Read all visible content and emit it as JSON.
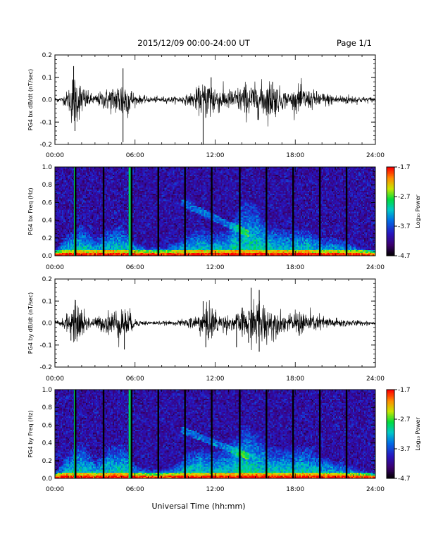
{
  "header": {
    "date_range": "2015/12/09  00:00-24:00 UT",
    "page": "Page 1/1"
  },
  "x_axis": {
    "label": "Universal Time (hh:mm)",
    "range_hours": [
      0,
      24
    ],
    "tick_labels": [
      "00:00",
      "06:00",
      "12:00",
      "18:00",
      "24:00"
    ]
  },
  "colorbar": {
    "label": "Log₁₀ Power",
    "tick_labels": [
      "-1.7",
      "-2.7",
      "-3.7",
      "-4.7"
    ],
    "range": [
      -4.7,
      -1.7
    ]
  },
  "chart_data": [
    {
      "type": "line",
      "panel": "bx-waveform",
      "ylabel": "PG4 bx dB/dt (nT/sec)",
      "ylim": [
        -0.2,
        0.2
      ],
      "ytick_labels": [
        "0.2",
        "0.1",
        "0.0",
        "-0.1",
        "-0.2"
      ],
      "xlim": [
        0,
        24
      ],
      "baseline": 0.0,
      "envelope": {
        "x": [
          0,
          0.5,
          1,
          1.3,
          1.8,
          2.5,
          3,
          3.7,
          4.5,
          5.1,
          5.6,
          6,
          7,
          8,
          9,
          10,
          11,
          11.6,
          12.3,
          13,
          13.7,
          14.3,
          15,
          15.5,
          16.2,
          17,
          17.7,
          18.3,
          19,
          20,
          21,
          22,
          23,
          24
        ],
        "amplitude": [
          0.01,
          0.01,
          0.04,
          0.11,
          0.08,
          0.03,
          0.02,
          0.04,
          0.06,
          0.09,
          0.06,
          0.02,
          0.012,
          0.012,
          0.012,
          0.02,
          0.06,
          0.09,
          0.05,
          0.04,
          0.05,
          0.07,
          0.06,
          0.07,
          0.08,
          0.04,
          0.03,
          0.06,
          0.04,
          0.03,
          0.02,
          0.02,
          0.012,
          0.01
        ]
      },
      "spikes": [
        {
          "x": 1.4,
          "y": 0.15
        },
        {
          "x": 1.5,
          "y": -0.14
        },
        {
          "x": 5.1,
          "y": 0.14
        },
        {
          "x": 5.1,
          "y": -0.19
        },
        {
          "x": 11.1,
          "y": -0.22
        },
        {
          "x": 11.7,
          "y": 0.1
        },
        {
          "x": 15.2,
          "y": -0.09
        },
        {
          "x": 16.3,
          "y": 0.08
        }
      ]
    },
    {
      "type": "heatmap",
      "panel": "bx-spectrogram",
      "ylabel": "PG4 bx Freq (Hz)",
      "ylim": [
        0.0,
        1.0
      ],
      "ytick_labels": [
        "1.0",
        "0.8",
        "0.6",
        "0.4",
        "0.2",
        "0.0"
      ],
      "xlim": [
        0,
        24
      ],
      "zlim": [
        -4.7,
        -1.7
      ],
      "data_gaps_hours": [
        1.4,
        3.5,
        5.6,
        7.6,
        9.6,
        11.6,
        13.7,
        15.7,
        17.7,
        19.7,
        21.7
      ],
      "bright_lines_hours": [
        1.5,
        5.6
      ],
      "activity_envelope": {
        "x": [
          0,
          1,
          2,
          3,
          4,
          5,
          6,
          7,
          8,
          9,
          10,
          11,
          12,
          13,
          14,
          15,
          16,
          17,
          18,
          19,
          20,
          21,
          22,
          23,
          24
        ],
        "max_freq_hz": [
          0.05,
          0.25,
          0.35,
          0.2,
          0.3,
          0.35,
          0.15,
          0.1,
          0.1,
          0.15,
          0.25,
          0.3,
          0.25,
          0.3,
          0.6,
          0.6,
          0.35,
          0.3,
          0.3,
          0.3,
          0.2,
          0.2,
          0.15,
          0.1,
          0.05
        ]
      },
      "diagonal_streak": {
        "x": [
          9.5,
          14.5
        ],
        "freq_hz": [
          0.6,
          0.25
        ]
      }
    },
    {
      "type": "line",
      "panel": "by-waveform",
      "ylabel": "PG4 by dB/dt (nT/sec)",
      "ylim": [
        -0.2,
        0.2
      ],
      "ytick_labels": [
        "0.2",
        "0.1",
        "0.0",
        "-0.1",
        "-0.2"
      ],
      "xlim": [
        0,
        24
      ],
      "baseline": 0.0,
      "envelope": {
        "x": [
          0,
          0.5,
          1,
          1.5,
          2,
          2.5,
          3,
          3.7,
          4.5,
          5.1,
          5.6,
          6,
          7,
          8,
          9,
          10,
          11,
          11.6,
          12.3,
          13,
          13.7,
          14.3,
          14.8,
          15.3,
          15.8,
          16.3,
          17,
          17.7,
          18.3,
          19,
          20,
          21,
          22,
          23,
          24
        ],
        "amplitude": [
          0.01,
          0.015,
          0.04,
          0.08,
          0.07,
          0.03,
          0.02,
          0.04,
          0.06,
          0.07,
          0.05,
          0.015,
          0.008,
          0.008,
          0.008,
          0.02,
          0.05,
          0.08,
          0.04,
          0.03,
          0.04,
          0.07,
          0.08,
          0.1,
          0.08,
          0.06,
          0.04,
          0.03,
          0.06,
          0.04,
          0.03,
          0.02,
          0.015,
          0.01,
          0.008
        ]
      },
      "spikes": [
        {
          "x": 1.2,
          "y": -0.08
        },
        {
          "x": 1.5,
          "y": 0.08
        },
        {
          "x": 5.2,
          "y": -0.12
        },
        {
          "x": 11.1,
          "y": 0.1
        },
        {
          "x": 11.3,
          "y": -0.11
        },
        {
          "x": 14.7,
          "y": 0.16
        },
        {
          "x": 15.3,
          "y": 0.15
        },
        {
          "x": 15.3,
          "y": -0.13
        },
        {
          "x": 13.6,
          "y": -0.11
        },
        {
          "x": 14.5,
          "y": -0.09
        }
      ]
    },
    {
      "type": "heatmap",
      "panel": "by-spectrogram",
      "ylabel": "PG4 by Freq (Hz)",
      "ylim": [
        0.0,
        1.0
      ],
      "ytick_labels": [
        "1.0",
        "0.8",
        "0.6",
        "0.4",
        "0.2",
        "0.0"
      ],
      "xlim": [
        0,
        24
      ],
      "zlim": [
        -4.7,
        -1.7
      ],
      "data_gaps_hours": [
        1.4,
        3.5,
        5.6,
        7.6,
        9.6,
        11.6,
        13.7,
        15.7,
        17.7,
        19.7,
        21.7
      ],
      "bright_lines_hours": [
        1.5,
        5.6
      ],
      "activity_envelope": {
        "x": [
          0,
          1,
          2,
          3,
          4,
          5,
          6,
          7,
          8,
          9,
          10,
          11,
          12,
          13,
          14,
          15,
          16,
          17,
          18,
          19,
          20,
          21,
          22,
          23,
          24
        ],
        "max_freq_hz": [
          0.05,
          0.3,
          0.4,
          0.2,
          0.35,
          0.4,
          0.15,
          0.1,
          0.1,
          0.15,
          0.3,
          0.35,
          0.3,
          0.35,
          0.6,
          0.55,
          0.35,
          0.35,
          0.35,
          0.35,
          0.25,
          0.2,
          0.15,
          0.1,
          0.05
        ]
      },
      "diagonal_streak": {
        "x": [
          9.5,
          14.5
        ],
        "freq_hz": [
          0.55,
          0.25
        ]
      }
    }
  ]
}
